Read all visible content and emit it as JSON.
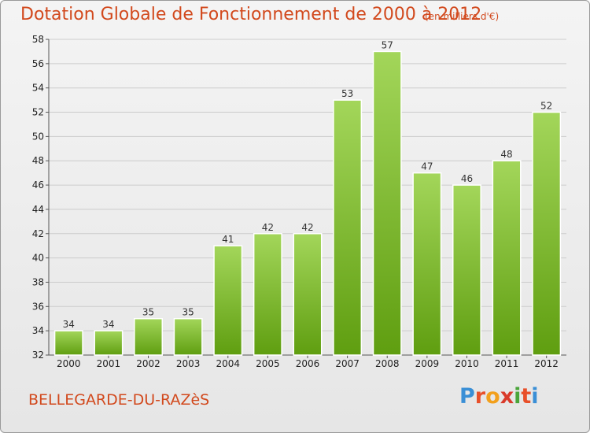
{
  "header": {
    "title": "Dotation Globale de Fonctionnement de 2000 à 2012",
    "unit_note": "(en milliers d'€)"
  },
  "footer": {
    "commune": "BELLEGARDE-DU-RAZèS",
    "logo": {
      "letters": [
        "P",
        "r",
        "o",
        "x",
        "i",
        "t",
        "i"
      ],
      "colors": [
        "#3a8fd6",
        "#e8502a",
        "#f2a01c",
        "#d93a2a",
        "#4aa53a",
        "#e8502a",
        "#3a8fd6"
      ]
    }
  },
  "colors": {
    "title": "#d2491d",
    "bar_light": "#a3d65a",
    "bar_dark": "#5f9e10",
    "grid": "#cccccc"
  },
  "chart_data": {
    "type": "bar",
    "title": "Dotation Globale de Fonctionnement de 2000 à 2012",
    "subtitle": "(en milliers d'€)",
    "categories": [
      "2000",
      "2001",
      "2002",
      "2003",
      "2004",
      "2005",
      "2006",
      "2007",
      "2008",
      "2009",
      "2010",
      "2011",
      "2012"
    ],
    "values": [
      34,
      34,
      35,
      35,
      41,
      42,
      42,
      53,
      57,
      47,
      46,
      48,
      52
    ],
    "ylim": [
      32,
      58
    ],
    "yticks": [
      32,
      34,
      36,
      38,
      40,
      42,
      44,
      46,
      48,
      50,
      52,
      54,
      56,
      58
    ],
    "grid": true,
    "data_labels": true
  }
}
